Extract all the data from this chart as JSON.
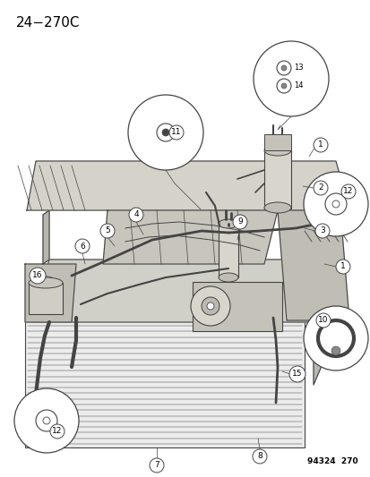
{
  "title": "24−270C",
  "doc_number": "94324  270",
  "bg": "#f5f5f0",
  "lc": "#444444",
  "wh": "#ffffff",
  "gray1": "#c8c8c8",
  "gray2": "#b0b0b0",
  "gray3": "#d8d8d8",
  "gray4": "#e8e8e8",
  "title_fs": 11,
  "doc_fs": 6.5,
  "callout_fs": 6.5,
  "large_circle_fs": 7.5
}
